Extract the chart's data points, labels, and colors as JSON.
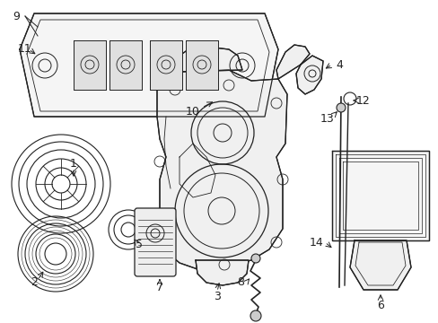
{
  "bg_color": "#ffffff",
  "line_color": "#222222",
  "label_color": "#222222",
  "font_size": 9,
  "figsize": [
    4.89,
    3.6
  ],
  "dpi": 100
}
